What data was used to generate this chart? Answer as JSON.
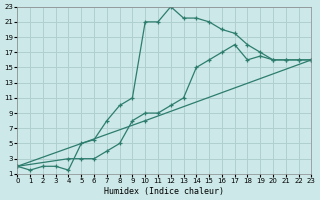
{
  "xlabel": "Humidex (Indice chaleur)",
  "xlim": [
    0,
    23
  ],
  "ylim": [
    1,
    23
  ],
  "xticks": [
    0,
    1,
    2,
    3,
    4,
    5,
    6,
    7,
    8,
    9,
    10,
    11,
    12,
    13,
    14,
    15,
    16,
    17,
    18,
    19,
    20,
    21,
    22,
    23
  ],
  "yticks": [
    1,
    3,
    5,
    7,
    9,
    11,
    13,
    15,
    17,
    19,
    21,
    23
  ],
  "bg_color": "#cce8e8",
  "grid_color": "#b0d0d0",
  "line_color": "#2d7d6e",
  "line1_x": [
    0,
    1,
    2,
    3,
    4,
    5,
    6,
    7,
    8,
    9,
    10,
    11,
    12,
    13,
    14,
    15,
    16,
    17,
    18,
    19,
    20,
    21,
    22,
    23
  ],
  "line1_y": [
    2,
    1.5,
    2,
    2,
    1.5,
    5,
    5.5,
    8,
    10,
    11,
    21,
    21,
    23,
    21.5,
    21.5,
    21,
    20,
    19.5,
    18,
    17,
    16,
    16,
    16,
    16
  ],
  "line2_x": [
    0,
    4,
    5,
    6,
    7,
    8,
    9,
    10,
    11,
    12,
    13,
    14,
    15,
    16,
    17,
    18,
    19,
    20,
    21,
    22,
    23
  ],
  "line2_y": [
    2,
    3,
    3,
    3,
    4,
    5,
    8,
    9,
    9,
    10,
    11,
    15,
    16,
    17,
    18,
    16,
    16.5,
    16,
    16,
    16,
    16
  ],
  "line3_x": [
    0,
    10,
    23
  ],
  "line3_y": [
    2,
    8,
    16
  ]
}
